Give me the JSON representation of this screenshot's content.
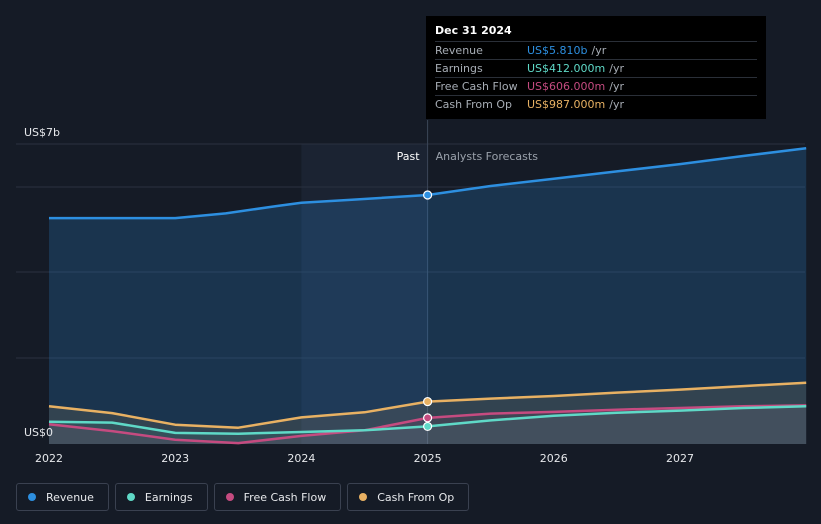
{
  "colors": {
    "revenue": "#2d8fe0",
    "earnings": "#5fd9c7",
    "free_cash_flow": "#c54b80",
    "cash_from_op": "#e8b163",
    "background": "#151b26"
  },
  "tooltip": {
    "date": "Dec 31 2024",
    "rows": [
      {
        "label": "Revenue",
        "value": "US$5.810b",
        "unit": "/yr"
      },
      {
        "label": "Earnings",
        "value": "US$412.000m",
        "unit": "/yr"
      },
      {
        "label": "Free Cash Flow",
        "value": "US$606.000m",
        "unit": "/yr"
      },
      {
        "label": "Cash From Op",
        "value": "US$987.000m",
        "unit": "/yr"
      }
    ]
  },
  "legend": [
    {
      "label": "Revenue",
      "series": "revenue"
    },
    {
      "label": "Earnings",
      "series": "earnings"
    },
    {
      "label": "Free Cash Flow",
      "series": "free_cash_flow"
    },
    {
      "label": "Cash From Op",
      "series": "cash_from_op"
    }
  ],
  "chart_data": {
    "type": "line",
    "y_unit": "US$ billions",
    "ylim": [
      0,
      7
    ],
    "y_tick_labels": [
      {
        "value": 7,
        "label": "US$7b"
      },
      {
        "value": 0,
        "label": "US$0"
      }
    ],
    "xlim": [
      2022,
      2028
    ],
    "x_ticks": [
      2022,
      2023,
      2024,
      2025,
      2026,
      2027
    ],
    "past_label": "Past",
    "forecast_label": "Analysts Forecasts",
    "past_region": [
      2024,
      2025
    ],
    "divider_x": 2025,
    "grid": true,
    "series": [
      {
        "name": "Revenue",
        "key": "revenue",
        "x": [
          2022,
          2023,
          2023.4,
          2023.8,
          2024,
          2024.4,
          2025,
          2025.5,
          2026,
          2026.5,
          2027,
          2027.5,
          2028
        ],
        "values": [
          5.27,
          5.27,
          5.38,
          5.55,
          5.63,
          5.7,
          5.81,
          6.02,
          6.19,
          6.36,
          6.53,
          6.72,
          6.9
        ]
      },
      {
        "name": "Cash From Op",
        "key": "cash_from_op",
        "x": [
          2022,
          2022.5,
          2023,
          2023.5,
          2024,
          2024.5,
          2025,
          2025.5,
          2026,
          2026.5,
          2027,
          2027.5,
          2028
        ],
        "values": [
          0.88,
          0.72,
          0.45,
          0.38,
          0.62,
          0.74,
          0.99,
          1.06,
          1.12,
          1.2,
          1.27,
          1.35,
          1.43
        ]
      },
      {
        "name": "Free Cash Flow",
        "key": "free_cash_flow",
        "x": [
          2022,
          2022.5,
          2023,
          2023.5,
          2024,
          2024.5,
          2025,
          2025.5,
          2026,
          2026.5,
          2027,
          2027.5,
          2028
        ],
        "values": [
          0.46,
          0.3,
          0.1,
          0.02,
          0.19,
          0.32,
          0.61,
          0.71,
          0.75,
          0.8,
          0.84,
          0.88,
          0.9
        ]
      },
      {
        "name": "Earnings",
        "key": "earnings",
        "x": [
          2022,
          2022.5,
          2023,
          2023.5,
          2024,
          2024.5,
          2025,
          2025.5,
          2026,
          2026.5,
          2027,
          2027.5,
          2028
        ],
        "values": [
          0.52,
          0.5,
          0.26,
          0.24,
          0.28,
          0.32,
          0.41,
          0.55,
          0.66,
          0.73,
          0.78,
          0.84,
          0.88
        ]
      }
    ],
    "highlight_x": 2025
  }
}
